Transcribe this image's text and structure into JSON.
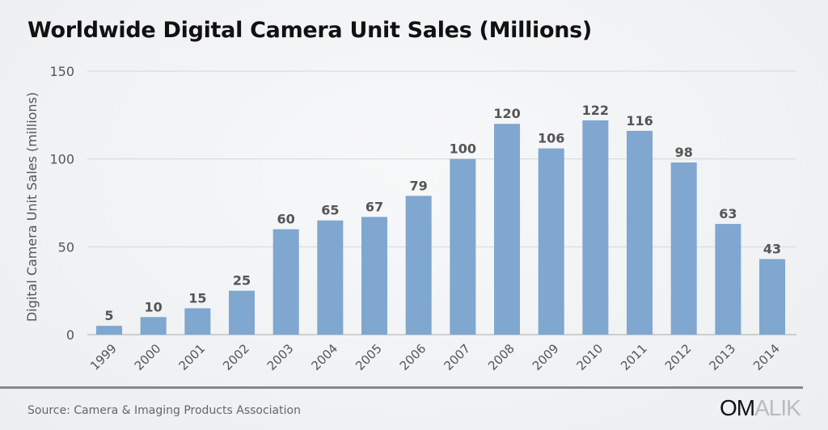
{
  "chart_data": {
    "type": "bar",
    "title": "Worldwide Digital Camera Unit Sales (Millions)",
    "ylabel": "Digital Camera Unit Sales (millions)",
    "xlabel": "",
    "categories": [
      "1999",
      "2000",
      "2001",
      "2002",
      "2003",
      "2004",
      "2005",
      "2006",
      "2007",
      "2008",
      "2009",
      "2010",
      "2011",
      "2012",
      "2013",
      "2014"
    ],
    "values": [
      5,
      10,
      15,
      25,
      60,
      65,
      67,
      79,
      100,
      120,
      106,
      122,
      116,
      98,
      63,
      43
    ],
    "ylim": [
      0,
      150
    ],
    "yticks": [
      0,
      50,
      100,
      150
    ],
    "grid": true,
    "bar_color": "#7fa7cf"
  },
  "source": "Source: Camera & Imaging Products Association",
  "logo": {
    "part1": "OM",
    "part2": "ALIK"
  }
}
